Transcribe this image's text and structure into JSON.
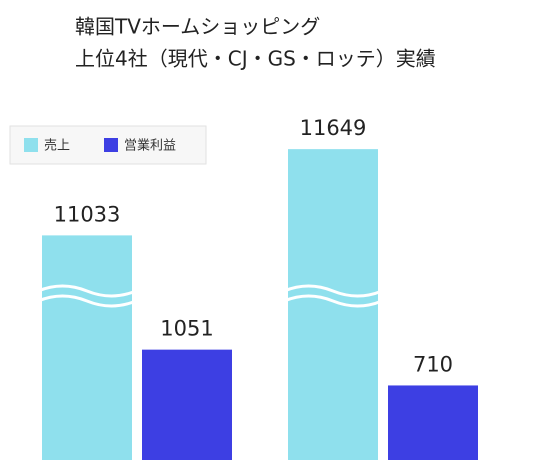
{
  "chart_data": {
    "type": "bar",
    "title": [
      "韓国TVホームショッピング",
      "上位4社（現代・CJ・GS・ロッテ）実績"
    ],
    "categories": [
      null,
      null
    ],
    "series": [
      {
        "name": "売上",
        "color": "#8fe0ed",
        "values": [
          11033,
          11649
        ]
      },
      {
        "name": "営業利益",
        "color": "#3d3fe3",
        "values": [
          1051,
          710
        ]
      }
    ],
    "legend": "upper left",
    "broken_axis": true
  }
}
